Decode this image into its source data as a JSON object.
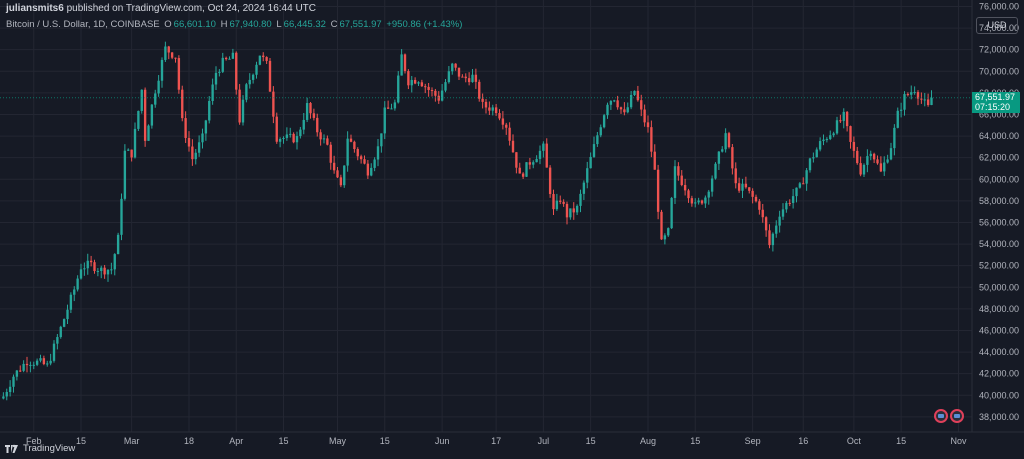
{
  "header": {
    "user": "juliansmits6",
    "published_text": "published on TradingView.com, Oct 24, 2024 16:44 UTC"
  },
  "legend": {
    "symbol": "Bitcoin / U.S. Dollar, 1D, COINBASE",
    "open_label": "O",
    "open": "66,601.10",
    "high_label": "H",
    "high": "67,940.80",
    "low_label": "L",
    "low": "66,445.32",
    "close_label": "C",
    "close": "67,551.97",
    "change": "+950.86 (+1.43%)"
  },
  "currency_button": "USD",
  "price_tag": {
    "price": "67,551.97",
    "countdown": "07:15:20"
  },
  "footer": {
    "brand": "TradingView"
  },
  "colors": {
    "up": "#26a69a",
    "down": "#ef5350",
    "background": "#161a25",
    "tag": "#089981"
  },
  "chart_data": {
    "type": "candlestick",
    "x_ticks": [
      {
        "label": "Feb",
        "date": "2024-02-01"
      },
      {
        "label": "15",
        "date": "2024-02-15"
      },
      {
        "label": "Mar",
        "date": "2024-03-01"
      },
      {
        "label": "18",
        "date": "2024-03-18"
      },
      {
        "label": "Apr",
        "date": "2024-04-01"
      },
      {
        "label": "15",
        "date": "2024-04-15"
      },
      {
        "label": "May",
        "date": "2024-05-01"
      },
      {
        "label": "15",
        "date": "2024-05-15"
      },
      {
        "label": "Jun",
        "date": "2024-06-01"
      },
      {
        "label": "17",
        "date": "2024-06-17"
      },
      {
        "label": "Jul",
        "date": "2024-07-01"
      },
      {
        "label": "15",
        "date": "2024-07-15"
      },
      {
        "label": "Aug",
        "date": "2024-08-01"
      },
      {
        "label": "15",
        "date": "2024-08-15"
      },
      {
        "label": "Sep",
        "date": "2024-09-01"
      },
      {
        "label": "16",
        "date": "2024-09-16"
      },
      {
        "label": "Oct",
        "date": "2024-10-01"
      },
      {
        "label": "15",
        "date": "2024-10-15"
      },
      {
        "label": "Nov",
        "date": "2024-11-01"
      }
    ],
    "y_ticks": [
      "76,000.00",
      "74,000.00",
      "72,000.00",
      "70,000.00",
      "68,000.00",
      "66,000.00",
      "64,000.00",
      "62,000.00",
      "60,000.00",
      "58,000.00",
      "56,000.00",
      "54,000.00",
      "52,000.00",
      "50,000.00",
      "48,000.00",
      "46,000.00",
      "44,000.00",
      "42,000.00",
      "40,000.00",
      "38,000.00"
    ],
    "ylim": [
      36600,
      76600
    ],
    "xlim": [
      "2024-01-22",
      "2024-11-05"
    ],
    "last_price": 67551.97,
    "close_series": [
      [
        "2024-01-23",
        39900
      ],
      [
        "2024-01-26",
        41800
      ],
      [
        "2024-01-30",
        43200
      ],
      [
        "2024-02-03",
        43000
      ],
      [
        "2024-02-05",
        42700
      ],
      [
        "2024-02-08",
        45300
      ],
      [
        "2024-02-10",
        47100
      ],
      [
        "2024-02-13",
        49800
      ],
      [
        "2024-02-15",
        51900
      ],
      [
        "2024-02-18",
        52100
      ],
      [
        "2024-02-21",
        51600
      ],
      [
        "2024-02-24",
        51700
      ],
      [
        "2024-02-26",
        54500
      ],
      [
        "2024-02-28",
        62500
      ],
      [
        "2024-03-01",
        62400
      ],
      [
        "2024-03-04",
        68300
      ],
      [
        "2024-03-05",
        63800
      ],
      [
        "2024-03-08",
        68300
      ],
      [
        "2024-03-11",
        72100
      ],
      [
        "2024-03-14",
        71400
      ],
      [
        "2024-03-16",
        65300
      ],
      [
        "2024-03-19",
        61900
      ],
      [
        "2024-03-22",
        63800
      ],
      [
        "2024-03-24",
        67200
      ],
      [
        "2024-03-26",
        69900
      ],
      [
        "2024-03-28",
        70800
      ],
      [
        "2024-03-31",
        71300
      ],
      [
        "2024-04-02",
        65500
      ],
      [
        "2024-04-04",
        68500
      ],
      [
        "2024-04-08",
        71600
      ],
      [
        "2024-04-10",
        70600
      ],
      [
        "2024-04-13",
        63900
      ],
      [
        "2024-04-16",
        63800
      ],
      [
        "2024-04-19",
        63800
      ],
      [
        "2024-04-22",
        66800
      ],
      [
        "2024-04-25",
        64500
      ],
      [
        "2024-04-28",
        63100
      ],
      [
        "2024-04-30",
        60600
      ],
      [
        "2024-05-02",
        59100
      ],
      [
        "2024-05-04",
        63900
      ],
      [
        "2024-05-07",
        62300
      ],
      [
        "2024-05-10",
        60800
      ],
      [
        "2024-05-13",
        62900
      ],
      [
        "2024-05-15",
        66200
      ],
      [
        "2024-05-18",
        67000
      ],
      [
        "2024-05-20",
        71400
      ],
      [
        "2024-05-22",
        69100
      ],
      [
        "2024-05-25",
        69300
      ],
      [
        "2024-05-28",
        68300
      ],
      [
        "2024-05-31",
        67500
      ],
      [
        "2024-06-04",
        70500
      ],
      [
        "2024-06-07",
        69300
      ],
      [
        "2024-06-10",
        69500
      ],
      [
        "2024-06-13",
        66800
      ],
      [
        "2024-06-17",
        66500
      ],
      [
        "2024-06-20",
        65000
      ],
      [
        "2024-06-24",
        60200
      ],
      [
        "2024-06-27",
        61600
      ],
      [
        "2024-07-01",
        62900
      ],
      [
        "2024-07-04",
        57000
      ],
      [
        "2024-07-06",
        58200
      ],
      [
        "2024-07-08",
        56700
      ],
      [
        "2024-07-11",
        57300
      ],
      [
        "2024-07-14",
        60800
      ],
      [
        "2024-07-17",
        64100
      ],
      [
        "2024-07-20",
        67200
      ],
      [
        "2024-07-22",
        67600
      ],
      [
        "2024-07-25",
        65900
      ],
      [
        "2024-07-28",
        68200
      ],
      [
        "2024-07-30",
        66200
      ],
      [
        "2024-08-01",
        64600
      ],
      [
        "2024-08-03",
        60700
      ],
      [
        "2024-08-05",
        54000
      ],
      [
        "2024-08-07",
        55100
      ],
      [
        "2024-08-09",
        60900
      ],
      [
        "2024-08-12",
        59300
      ],
      [
        "2024-08-15",
        57500
      ],
      [
        "2024-08-18",
        58400
      ],
      [
        "2024-08-21",
        61100
      ],
      [
        "2024-08-24",
        64200
      ],
      [
        "2024-08-27",
        59400
      ],
      [
        "2024-08-30",
        59100
      ],
      [
        "2024-09-03",
        57500
      ],
      [
        "2024-09-06",
        53900
      ],
      [
        "2024-09-09",
        56900
      ],
      [
        "2024-09-12",
        58100
      ],
      [
        "2024-09-15",
        59200
      ],
      [
        "2024-09-18",
        61700
      ],
      [
        "2024-09-21",
        63300
      ],
      [
        "2024-09-24",
        64300
      ],
      [
        "2024-09-28",
        65800
      ],
      [
        "2024-09-30",
        63300
      ],
      [
        "2024-10-03",
        60800
      ],
      [
        "2024-10-06",
        62800
      ],
      [
        "2024-10-09",
        60600
      ],
      [
        "2024-10-12",
        63100
      ],
      [
        "2024-10-14",
        66000
      ],
      [
        "2024-10-16",
        67600
      ],
      [
        "2024-10-19",
        68400
      ],
      [
        "2024-10-21",
        67400
      ],
      [
        "2024-10-23",
        66600
      ],
      [
        "2024-10-24",
        67552
      ]
    ],
    "annotations": [
      {
        "type": "event",
        "date": "2024-10-25"
      },
      {
        "type": "event",
        "date": "2024-10-27"
      }
    ]
  }
}
